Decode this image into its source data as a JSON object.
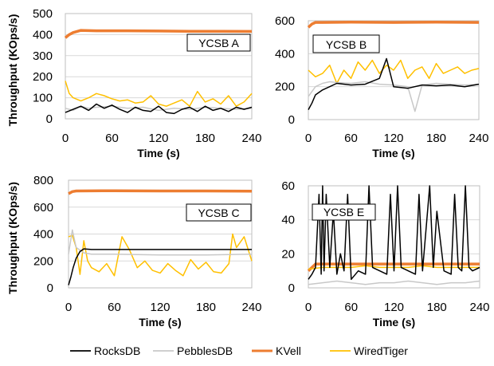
{
  "figure": {
    "legend": [
      {
        "name": "RocksDB",
        "color": "#000000"
      },
      {
        "name": "PebblesDB",
        "color": "#c8c8c8"
      },
      {
        "name": "KVell",
        "color": "#ed7d31"
      },
      {
        "name": "WiredTiger",
        "color": "#ffc000"
      }
    ]
  },
  "chart_data": [
    {
      "type": "line",
      "panel_label": "YCSB A",
      "xlabel": "Time (s)",
      "ylabel": "Throughput (KOps/s)",
      "xlim": [
        0,
        240
      ],
      "ylim": [
        0,
        500
      ],
      "xticks": [
        0,
        60,
        120,
        180,
        240
      ],
      "yticks": [
        0,
        100,
        200,
        300,
        400,
        500
      ],
      "grid": true,
      "series": [
        {
          "name": "KVell",
          "color": "#ed7d31",
          "x": [
            0,
            5,
            10,
            20,
            40,
            80,
            120,
            160,
            200,
            240
          ],
          "y": [
            385,
            400,
            410,
            420,
            418,
            418,
            417,
            416,
            416,
            415
          ]
        },
        {
          "name": "WiredTiger",
          "color": "#ffc000",
          "x": [
            0,
            5,
            10,
            20,
            30,
            40,
            50,
            60,
            70,
            80,
            90,
            100,
            110,
            120,
            130,
            140,
            150,
            160,
            170,
            180,
            190,
            200,
            210,
            220,
            230,
            240
          ],
          "y": [
            180,
            120,
            100,
            85,
            100,
            120,
            110,
            95,
            85,
            90,
            75,
            80,
            110,
            70,
            60,
            75,
            90,
            60,
            130,
            80,
            95,
            70,
            110,
            60,
            80,
            120
          ]
        },
        {
          "name": "PebblesDB",
          "color": "#c8c8c8",
          "x": [
            0,
            10,
            20,
            30,
            40,
            60,
            80,
            100,
            120,
            140,
            160,
            180,
            200,
            220,
            240
          ],
          "y": [
            50,
            40,
            60,
            50,
            55,
            60,
            50,
            55,
            40,
            50,
            45,
            55,
            50,
            45,
            50
          ]
        },
        {
          "name": "RocksDB",
          "color": "#000000",
          "x": [
            0,
            10,
            20,
            30,
            40,
            50,
            60,
            70,
            80,
            90,
            100,
            110,
            120,
            130,
            140,
            150,
            160,
            170,
            180,
            190,
            200,
            210,
            220,
            230,
            240
          ],
          "y": [
            30,
            45,
            60,
            40,
            70,
            50,
            65,
            45,
            30,
            55,
            40,
            35,
            60,
            30,
            25,
            45,
            55,
            35,
            60,
            40,
            50,
            35,
            55,
            45,
            55
          ]
        }
      ]
    },
    {
      "type": "line",
      "panel_label": "YCSB B",
      "xlabel": "Time (s)",
      "ylabel": "",
      "xlim": [
        0,
        240
      ],
      "ylim": [
        0,
        600
      ],
      "xticks": [
        0,
        60,
        120,
        180,
        240
      ],
      "yticks": [
        0,
        200,
        400,
        600
      ],
      "grid": true,
      "series": [
        {
          "name": "KVell",
          "color": "#ed7d31",
          "x": [
            0,
            5,
            10,
            20,
            60,
            120,
            180,
            240
          ],
          "y": [
            560,
            580,
            590,
            590,
            592,
            590,
            592,
            590
          ]
        },
        {
          "name": "WiredTiger",
          "color": "#ffc000",
          "x": [
            0,
            10,
            20,
            30,
            40,
            50,
            60,
            70,
            80,
            90,
            100,
            110,
            120,
            130,
            140,
            150,
            160,
            170,
            180,
            190,
            200,
            210,
            220,
            230,
            240
          ],
          "y": [
            300,
            260,
            280,
            330,
            220,
            300,
            250,
            350,
            300,
            360,
            280,
            330,
            300,
            360,
            250,
            300,
            320,
            250,
            340,
            280,
            300,
            320,
            280,
            300,
            310
          ]
        },
        {
          "name": "PebblesDB",
          "color": "#c8c8c8",
          "x": [
            0,
            10,
            20,
            30,
            40,
            60,
            80,
            100,
            120,
            140,
            150,
            160,
            180,
            200,
            220,
            240
          ],
          "y": [
            140,
            200,
            220,
            230,
            225,
            220,
            230,
            215,
            210,
            200,
            50,
            210,
            220,
            215,
            210,
            215
          ]
        },
        {
          "name": "RocksDB",
          "color": "#000000",
          "x": [
            0,
            5,
            10,
            20,
            30,
            40,
            60,
            80,
            100,
            110,
            120,
            140,
            160,
            180,
            200,
            220,
            240
          ],
          "y": [
            60,
            100,
            150,
            180,
            200,
            220,
            210,
            215,
            250,
            370,
            200,
            190,
            210,
            205,
            210,
            200,
            215
          ]
        }
      ]
    },
    {
      "type": "line",
      "panel_label": "YCSB C",
      "xlabel": "Time (s)",
      "ylabel": "Throughput (KOps/s)",
      "xlim": [
        0,
        240
      ],
      "ylim": [
        0,
        800
      ],
      "xticks": [
        0,
        60,
        120,
        180,
        240
      ],
      "yticks": [
        0,
        200,
        400,
        600,
        800
      ],
      "grid": true,
      "series": [
        {
          "name": "KVell",
          "color": "#ed7d31",
          "x": [
            0,
            5,
            10,
            60,
            120,
            180,
            240
          ],
          "y": [
            700,
            715,
            720,
            722,
            720,
            720,
            718
          ]
        },
        {
          "name": "WiredTiger",
          "color": "#ffc000",
          "x": [
            0,
            5,
            10,
            15,
            20,
            25,
            30,
            40,
            50,
            60,
            70,
            80,
            90,
            100,
            110,
            120,
            130,
            140,
            150,
            160,
            170,
            180,
            190,
            200,
            210,
            215,
            220,
            230,
            240
          ],
          "y": [
            380,
            390,
            300,
            100,
            350,
            200,
            150,
            120,
            180,
            90,
            380,
            280,
            150,
            200,
            130,
            110,
            180,
            130,
            90,
            210,
            140,
            190,
            120,
            110,
            180,
            400,
            300,
            380,
            200
          ]
        },
        {
          "name": "PebblesDB",
          "color": "#c8c8c8",
          "x": [
            0,
            5,
            10,
            20,
            30,
            60,
            120,
            180,
            240
          ],
          "y": [
            250,
            430,
            300,
            260,
            250,
            250,
            245,
            245,
            250
          ]
        },
        {
          "name": "RocksDB",
          "color": "#000000",
          "x": [
            0,
            3,
            6,
            10,
            15,
            20,
            30,
            60,
            120,
            180,
            240
          ],
          "y": [
            20,
            80,
            150,
            220,
            270,
            290,
            285,
            285,
            285,
            285,
            285
          ]
        }
      ]
    },
    {
      "type": "line",
      "panel_label": "YCSB E",
      "xlabel": "Time (s)",
      "ylabel": "",
      "xlim": [
        0,
        240
      ],
      "ylim": [
        0,
        60
      ],
      "xticks": [
        0,
        60,
        120,
        180,
        240
      ],
      "yticks": [
        0,
        20,
        40,
        60
      ],
      "grid": true,
      "series": [
        {
          "name": "KVell",
          "color": "#ed7d31",
          "x": [
            0,
            10,
            20,
            60,
            120,
            180,
            240
          ],
          "y": [
            10,
            14,
            14,
            14,
            14,
            14,
            14
          ]
        },
        {
          "name": "WiredTiger",
          "color": "#ffc000",
          "x": [
            0,
            20,
            40,
            60,
            80,
            100,
            120,
            140,
            160,
            180,
            200,
            220,
            240
          ],
          "y": [
            11,
            12,
            12,
            12,
            13,
            12,
            12,
            12,
            13,
            12,
            12,
            12,
            12
          ]
        },
        {
          "name": "PebblesDB",
          "color": "#c8c8c8",
          "x": [
            0,
            20,
            40,
            60,
            80,
            100,
            120,
            140,
            160,
            180,
            200,
            220,
            240
          ],
          "y": [
            2,
            3,
            4,
            3,
            2,
            3,
            3,
            4,
            3,
            2,
            3,
            3,
            4
          ]
        },
        {
          "name": "RocksDB",
          "color": "#000000",
          "x": [
            0,
            5,
            10,
            15,
            18,
            20,
            22,
            25,
            30,
            35,
            40,
            45,
            50,
            55,
            60,
            70,
            80,
            85,
            90,
            100,
            110,
            115,
            120,
            125,
            130,
            140,
            150,
            155,
            160,
            170,
            175,
            180,
            190,
            200,
            205,
            210,
            215,
            220,
            225,
            230,
            240
          ],
          "y": [
            5,
            8,
            12,
            55,
            8,
            60,
            10,
            55,
            12,
            45,
            8,
            20,
            10,
            55,
            5,
            10,
            8,
            60,
            12,
            10,
            8,
            55,
            10,
            60,
            12,
            10,
            8,
            55,
            10,
            60,
            12,
            45,
            10,
            8,
            55,
            12,
            10,
            60,
            12,
            10,
            12
          ]
        }
      ]
    }
  ]
}
